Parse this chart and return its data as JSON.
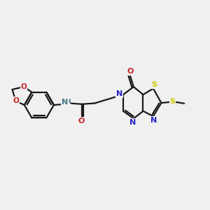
{
  "bg_color": "#f0f0f0",
  "bond_color": "#1a1a1a",
  "N_color": "#2222cc",
  "O_color": "#cc2222",
  "S_color": "#cccc00",
  "NH_color": "#4a7a8a",
  "line_width": 1.6,
  "figsize": [
    3.0,
    3.0
  ],
  "dpi": 100,
  "font_size": 7.5,
  "xlim": [
    0,
    12
  ],
  "ylim": [
    0,
    10
  ]
}
